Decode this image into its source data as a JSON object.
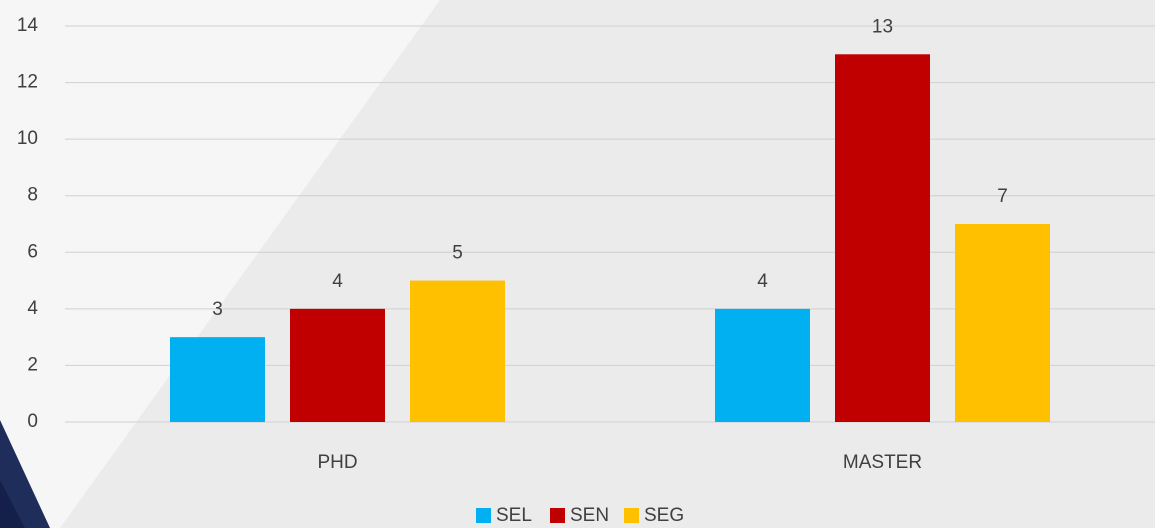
{
  "chart_data": {
    "type": "bar",
    "categories": [
      "PHD",
      "MASTER"
    ],
    "series": [
      {
        "name": "SEL",
        "color": "#00b0f0",
        "values": [
          3,
          4
        ]
      },
      {
        "name": "SEN",
        "color": "#c00000",
        "values": [
          4,
          13
        ]
      },
      {
        "name": "SEG",
        "color": "#ffc000",
        "values": [
          5,
          7
        ]
      }
    ],
    "ylim": [
      0,
      14
    ],
    "yticks": [
      0,
      2,
      4,
      6,
      8,
      10,
      12,
      14
    ],
    "grid": true,
    "data_labels": true,
    "legend": "bottom"
  }
}
